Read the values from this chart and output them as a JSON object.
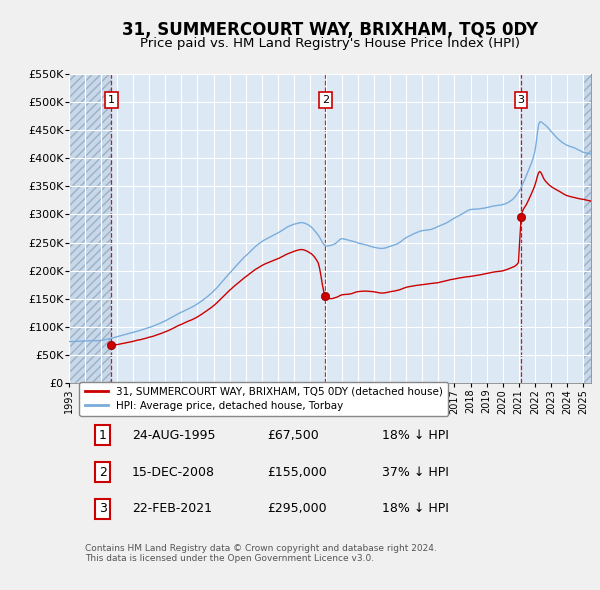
{
  "title": "31, SUMMERCOURT WAY, BRIXHAM, TQ5 0DY",
  "subtitle": "Price paid vs. HM Land Registry's House Price Index (HPI)",
  "title_fontsize": 12,
  "subtitle_fontsize": 9.5,
  "background_color": "#f0f0f0",
  "plot_background": "#dce9f5",
  "grid_color": "#ffffff",
  "ylim": [
    0,
    550000
  ],
  "yticks": [
    0,
    50000,
    100000,
    150000,
    200000,
    250000,
    300000,
    350000,
    400000,
    450000,
    500000,
    550000
  ],
  "ytick_labels": [
    "£0",
    "£50K",
    "£100K",
    "£150K",
    "£200K",
    "£250K",
    "£300K",
    "£350K",
    "£400K",
    "£450K",
    "£500K",
    "£550K"
  ],
  "xlim_start": 1993.0,
  "xlim_end": 2025.5,
  "transactions": [
    {
      "label": "1",
      "date_str": "24-AUG-1995",
      "year": 1995.64,
      "price": 67500
    },
    {
      "label": "2",
      "date_str": "15-DEC-2008",
      "year": 2008.96,
      "price": 155000
    },
    {
      "label": "3",
      "date_str": "22-FEB-2021",
      "year": 2021.13,
      "price": 295000
    }
  ],
  "transaction_color": "#cc0000",
  "vline_color": "#cc0000",
  "hpi_line_color": "#7aaddc",
  "property_line_color": "#cc0000",
  "legend_label_property": "31, SUMMERCOURT WAY, BRIXHAM, TQ5 0DY (detached house)",
  "legend_label_hpi": "HPI: Average price, detached house, Torbay",
  "footnote": "Contains HM Land Registry data © Crown copyright and database right 2024.\nThis data is licensed under the Open Government Licence v3.0.",
  "table_rows": [
    [
      "1",
      "24-AUG-1995",
      "£67,500",
      "18% ↓ HPI"
    ],
    [
      "2",
      "15-DEC-2008",
      "£155,000",
      "37% ↓ HPI"
    ],
    [
      "3",
      "22-FEB-2021",
      "£295,000",
      "18% ↓ HPI"
    ]
  ]
}
